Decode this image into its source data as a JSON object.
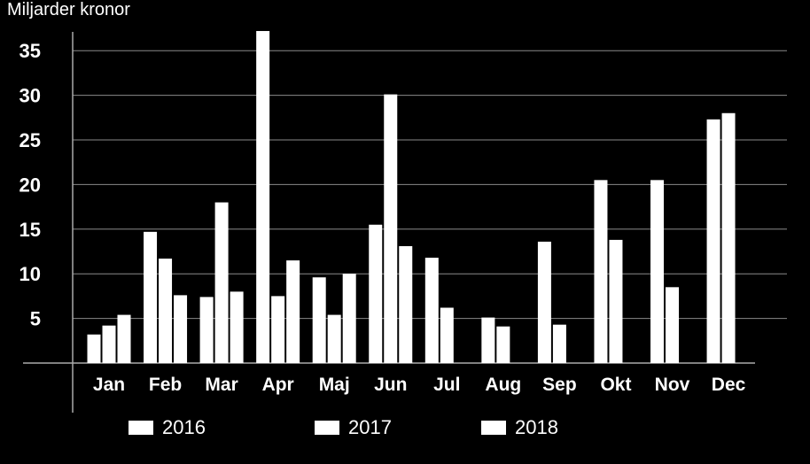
{
  "chart_data": {
    "type": "bar",
    "unit_label": "Miljarder kronor",
    "categories": [
      "Jan",
      "Feb",
      "Mar",
      "Apr",
      "Maj",
      "Jun",
      "Jul",
      "Aug",
      "Sep",
      "Okt",
      "Nov",
      "Dec"
    ],
    "series": [
      {
        "name": "2016",
        "values": [
          3.2,
          14.7,
          7.4,
          37.2,
          9.6,
          15.5,
          11.8,
          5.1,
          13.6,
          20.5,
          20.5,
          27.3
        ]
      },
      {
        "name": "2017",
        "values": [
          4.2,
          11.7,
          18.0,
          7.5,
          5.4,
          30.1,
          6.2,
          4.1,
          4.3,
          13.8,
          8.5,
          28.0
        ]
      },
      {
        "name": "2018",
        "values": [
          5.4,
          7.6,
          8.0,
          11.5,
          10.0,
          13.1,
          null,
          null,
          null,
          null,
          null,
          null
        ]
      }
    ],
    "yticks": [
      5,
      10,
      15,
      20,
      25,
      30,
      35
    ],
    "ylim": [
      0,
      38
    ],
    "grid": true,
    "legend_position": "bottom",
    "bar_color": "#ffffff",
    "background_color": "#000000"
  }
}
